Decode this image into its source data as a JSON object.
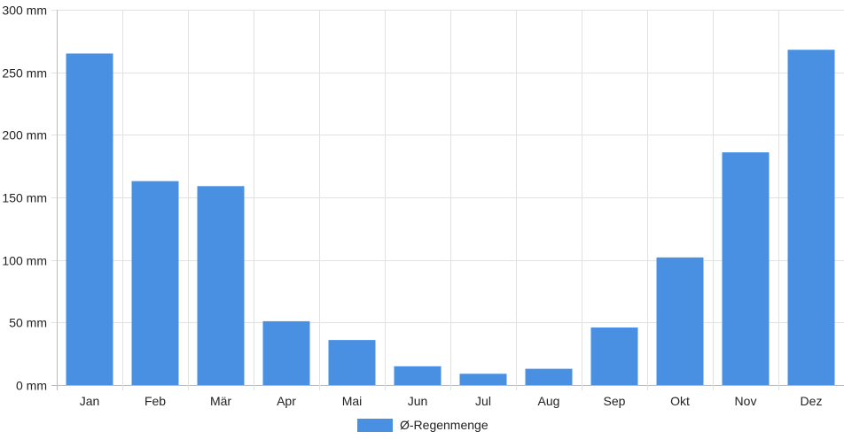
{
  "chart_data": {
    "type": "bar",
    "categories": [
      "Jan",
      "Feb",
      "Mär",
      "Apr",
      "Mai",
      "Jun",
      "Jul",
      "Aug",
      "Sep",
      "Okt",
      "Nov",
      "Dez"
    ],
    "series": [
      {
        "name": "Ø-Regenmenge",
        "values": [
          265,
          163,
          159,
          51,
          36,
          15,
          9,
          13,
          46,
          102,
          186,
          268
        ],
        "color": "#4a90e2"
      }
    ],
    "y_ticks": [
      0,
      50,
      100,
      150,
      200,
      250,
      300
    ],
    "y_unit": "mm",
    "ylim": [
      0,
      300
    ],
    "grid": true,
    "legend_position": "bottom-center"
  }
}
